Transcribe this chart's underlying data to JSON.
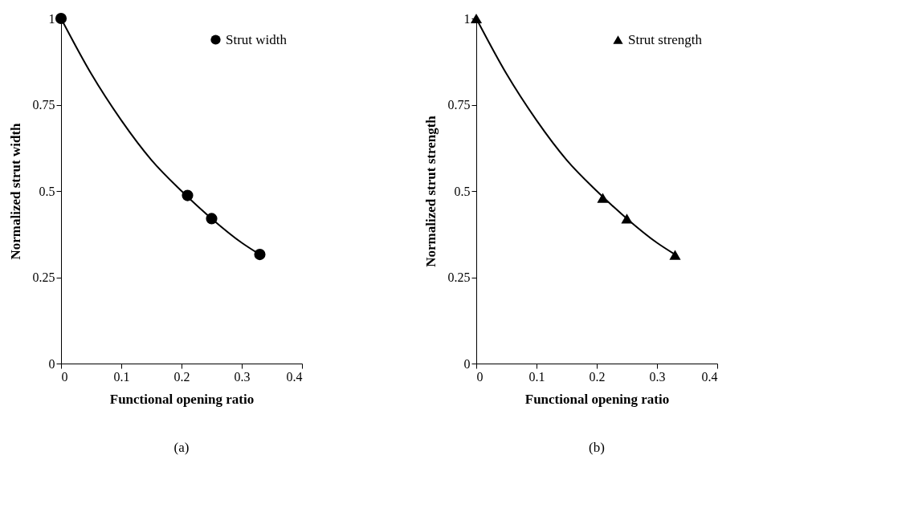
{
  "chart_data": [
    {
      "type": "scatter",
      "xlabel": "Functional opening ratio",
      "ylabel": "Normalized strut width",
      "xlim": [
        0,
        0.4
      ],
      "ylim": [
        0,
        1
      ],
      "xticks": [
        0,
        0.1,
        0.2,
        0.3,
        0.4
      ],
      "yticks": [
        0,
        0.25,
        0.5,
        0.75,
        1
      ],
      "grid": false,
      "legend": "top right",
      "annotations": [
        "(a)"
      ],
      "series": [
        {
          "type": "line",
          "color": "#000000",
          "marker": "none",
          "x": [
            0,
            0.05,
            0.1,
            0.15,
            0.2,
            0.25,
            0.3,
            0.33
          ],
          "values": [
            1,
            0.84,
            0.705,
            0.59,
            0.5,
            0.42,
            0.35,
            0.316
          ]
        },
        {
          "type": "scatter",
          "name": "Strut width",
          "color": "#000000",
          "marker": "circle",
          "x": [
            0,
            0.21,
            0.25,
            0.33
          ],
          "values": [
            1,
            0.487,
            0.42,
            0.316
          ]
        }
      ]
    },
    {
      "type": "scatter",
      "xlabel": "Functional opening ratio",
      "ylabel": "Normalized strut strength",
      "xlim": [
        0,
        0.4
      ],
      "ylim": [
        0,
        1
      ],
      "xticks": [
        0,
        0.1,
        0.2,
        0.3,
        0.4
      ],
      "yticks": [
        0,
        0.25,
        0.5,
        0.75,
        1
      ],
      "grid": false,
      "legend": "top right",
      "annotations": [
        "(b)"
      ],
      "series": [
        {
          "type": "line",
          "color": "#000000",
          "marker": "none",
          "x": [
            0,
            0.05,
            0.1,
            0.15,
            0.2,
            0.25,
            0.3,
            0.33
          ],
          "values": [
            1,
            0.84,
            0.705,
            0.59,
            0.5,
            0.42,
            0.35,
            0.316
          ]
        },
        {
          "type": "scatter",
          "name": "Strut strength",
          "color": "#000000",
          "marker": "triangle",
          "x": [
            0,
            0.21,
            0.25,
            0.33
          ],
          "values": [
            1,
            0.48,
            0.42,
            0.315
          ]
        }
      ]
    }
  ]
}
